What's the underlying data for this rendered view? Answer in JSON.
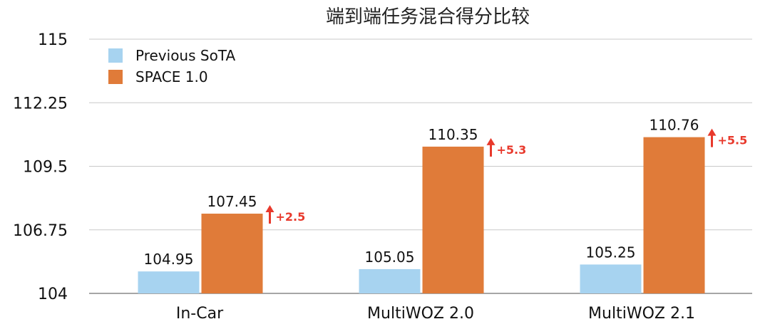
{
  "chart_data": {
    "type": "bar",
    "title": "端到端任务混合得分比较",
    "xlabel": "",
    "ylabel": "",
    "categories": [
      "In-Car",
      "MultiWOZ 2.0",
      "MultiWOZ 2.1"
    ],
    "series": [
      {
        "name": "Previous SoTA",
        "color": "#a7d3f0",
        "values": [
          104.95,
          105.05,
          105.25
        ]
      },
      {
        "name": "SPACE 1.0",
        "color": "#e07b39",
        "values": [
          107.45,
          110.35,
          110.76
        ]
      }
    ],
    "value_labels": {
      "Previous SoTA": [
        "104.95",
        "105.05",
        "105.25"
      ],
      "SPACE 1.0": [
        "107.45",
        "110.35",
        "110.76"
      ]
    },
    "improvements": [
      "+2.5",
      "+5.3",
      "+5.5"
    ],
    "improvement_color": "#e8392c",
    "ylim": [
      104,
      115
    ],
    "yticks": [
      104,
      106.75,
      109.5,
      112.25,
      115
    ],
    "ytick_labels": [
      "104",
      "106.75",
      "109.5",
      "112.25",
      "115"
    ],
    "grid": true,
    "legend_position": "top-left"
  }
}
